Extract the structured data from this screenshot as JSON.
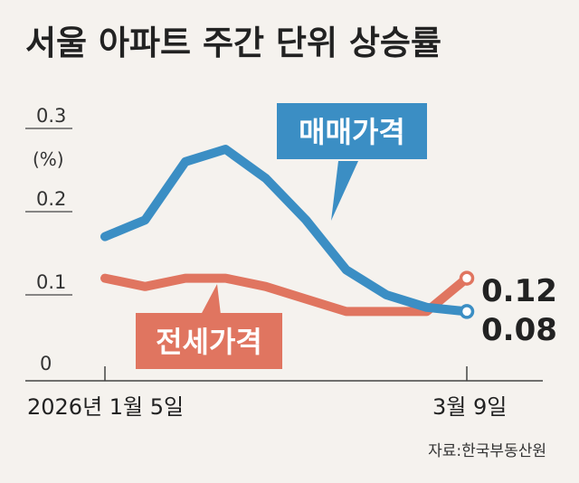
{
  "chart_data": {
    "type": "line",
    "title": "서울 아파트 주간 단위 상승률",
    "unit_label": "(%)",
    "ylim": [
      0,
      0.3
    ],
    "y_ticks": [
      "0.3",
      "0.2",
      "0.1",
      "0"
    ],
    "y_tick_values": [
      0.3,
      0.2,
      0.1,
      0
    ],
    "x_tick_labels": [
      "2026년 1월 5일",
      "3월 9일"
    ],
    "x_count": 10,
    "series": [
      {
        "name": "매매가격",
        "color": "#3b8ec4",
        "values": [
          0.17,
          0.19,
          0.26,
          0.275,
          0.24,
          0.19,
          0.13,
          0.1,
          0.085,
          0.08
        ],
        "end_label": "0.08"
      },
      {
        "name": "전세가격",
        "color": "#e07560",
        "values": [
          0.12,
          0.11,
          0.12,
          0.12,
          0.11,
          0.095,
          0.08,
          0.08,
          0.08,
          0.12
        ],
        "end_label": "0.12"
      }
    ],
    "source": "자료:한국부동산원"
  }
}
